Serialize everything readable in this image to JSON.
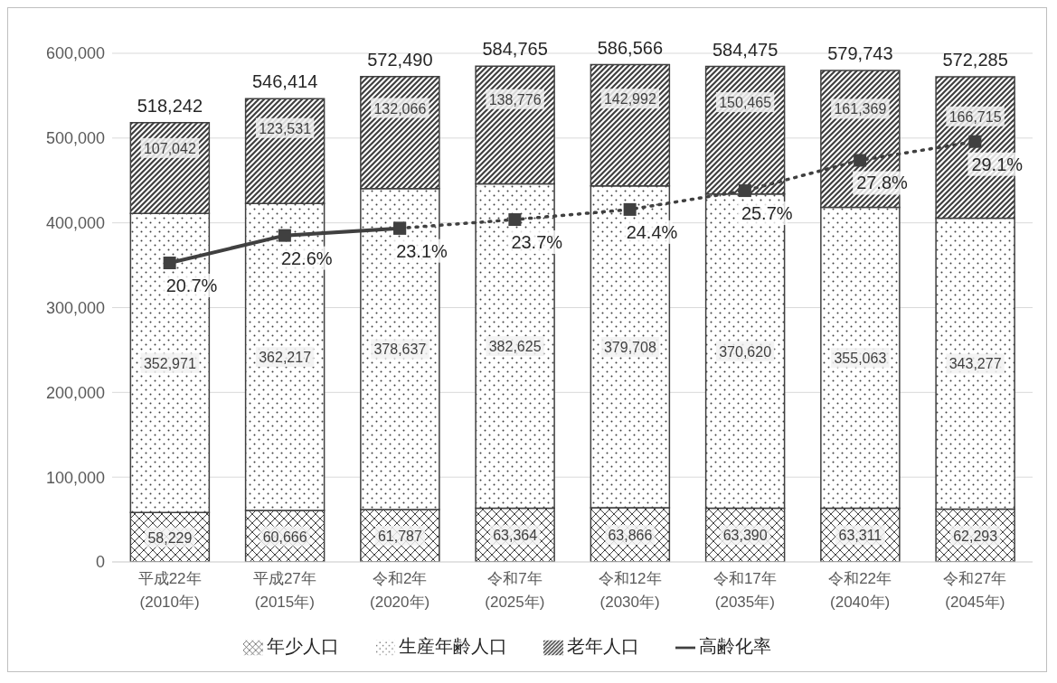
{
  "chart_data": {
    "type": "bar",
    "stacked": true,
    "categories": [
      "平成22年\n(2010年)",
      "平成27年\n(2015年)",
      "令和2年\n(2020年)",
      "令和7年\n(2025年)",
      "令和12年\n(2030年)",
      "令和17年\n(2035年)",
      "令和22年\n(2040年)",
      "令和27年\n(2045年)"
    ],
    "series": [
      {
        "name": "年少人口",
        "color": "#404040",
        "values": [
          58229,
          60666,
          61787,
          63364,
          63866,
          63390,
          63311,
          62293
        ],
        "value_labels": [
          "58,229",
          "60,666",
          "61,787",
          "63,364",
          "63,866",
          "63,390",
          "63,311",
          "62,293"
        ]
      },
      {
        "name": "生産年齢人口",
        "color": "#404040",
        "values": [
          352971,
          362217,
          378637,
          382625,
          379708,
          370620,
          355063,
          343277
        ],
        "value_labels": [
          "352,971",
          "362,217",
          "378,637",
          "382,625",
          "379,708",
          "370,620",
          "355,063",
          "343,277"
        ]
      },
      {
        "name": "老年人口",
        "color": "#404040",
        "values": [
          107042,
          123531,
          132066,
          138776,
          142992,
          150465,
          161369,
          166715
        ],
        "value_labels": [
          "107,042",
          "123,531",
          "132,066",
          "138,776",
          "142,992",
          "150,465",
          "161,369",
          "166,715"
        ]
      },
      {
        "name": "高齢化率",
        "type": "line",
        "axis": "y2",
        "color": "#404040",
        "line_style": "solid",
        "marker": "square",
        "values": [
          20.7,
          22.6,
          23.1,
          null,
          null,
          null,
          null,
          null
        ],
        "value_labels": [
          "20.7%",
          "22.6%",
          "23.1%",
          null,
          null,
          null,
          null,
          null
        ]
      },
      {
        "type": "line",
        "axis": "y2",
        "color": "#404040",
        "line_style": "dotted",
        "marker": "square",
        "values": [
          null,
          null,
          23.1,
          23.7,
          24.4,
          25.7,
          27.8,
          29.1
        ],
        "value_labels": [
          null,
          null,
          null,
          "23.7%",
          "24.4%",
          "25.7%",
          "27.8%",
          "29.1%"
        ]
      }
    ],
    "totals": [
      "518,242",
      "546,414",
      "572,490",
      "584,765",
      "586,566",
      "584,475",
      "579,743",
      "572,285"
    ],
    "ylim": [
      0,
      600000
    ],
    "yticks": [
      0,
      {
        "value": 100000,
        "label": "100,000"
      },
      {
        "value": 200000,
        "label": "200,000"
      },
      {
        "value": 300000,
        "label": "300,000"
      },
      {
        "value": 400000,
        "label": "400,000"
      },
      {
        "value": 500000,
        "label": "500,000"
      },
      {
        "value": 600000,
        "label": "600,000"
      }
    ],
    "grid": "y",
    "legend": "bottom"
  }
}
